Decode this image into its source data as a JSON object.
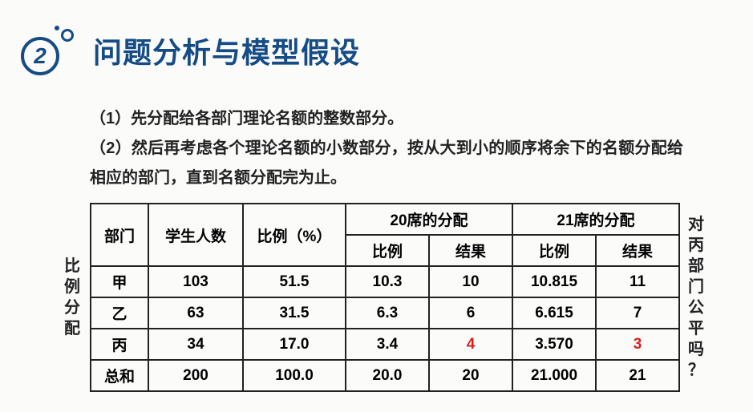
{
  "header": {
    "badge_number": "2",
    "title": "问题分析与模型假设"
  },
  "paragraphs": {
    "p1": "（1）先分配给各部门理论名额的整数部分。",
    "p2": "（2）然后再考虑各个理论名额的小数部分，按从大到小的顺序将余下的名额分配给相应的部门，直到名额分配完为止。"
  },
  "side_labels": {
    "left": [
      "比",
      "例",
      "分",
      "配"
    ],
    "right": [
      "对",
      "丙",
      "部",
      "门",
      "公",
      "平",
      "吗",
      "？"
    ]
  },
  "table": {
    "headers": {
      "dept": "部门",
      "students": "学生人数",
      "pct": "比例（%）",
      "alloc20": "20席的分配",
      "alloc21": "21席的分配",
      "sub_ratio": "比例",
      "sub_result": "结果"
    },
    "rows": [
      {
        "dept": "甲",
        "students": "103",
        "pct": "51.5",
        "r20": "10.3",
        "res20": "10",
        "r21": "10.815",
        "res21": "11",
        "hl20": false,
        "hl21": false
      },
      {
        "dept": "乙",
        "students": "63",
        "pct": "31.5",
        "r20": "6.3",
        "res20": "6",
        "r21": "6.615",
        "res21": "7",
        "hl20": false,
        "hl21": false
      },
      {
        "dept": "丙",
        "students": "34",
        "pct": "17.0",
        "r20": "3.4",
        "res20": "4",
        "r21": "3.570",
        "res21": "3",
        "hl20": true,
        "hl21": true
      },
      {
        "dept": "总和",
        "students": "200",
        "pct": "100.0",
        "r20": "20.0",
        "res20": "20",
        "r21": "21.000",
        "res21": "21",
        "hl20": false,
        "hl21": false
      }
    ],
    "styles": {
      "border_color": "#222222",
      "highlight_color": "#d9201f",
      "text_color": "#222222",
      "font_size_pt": 14
    }
  },
  "colors": {
    "brand": "#154c85",
    "background": "#fbfbfa"
  }
}
